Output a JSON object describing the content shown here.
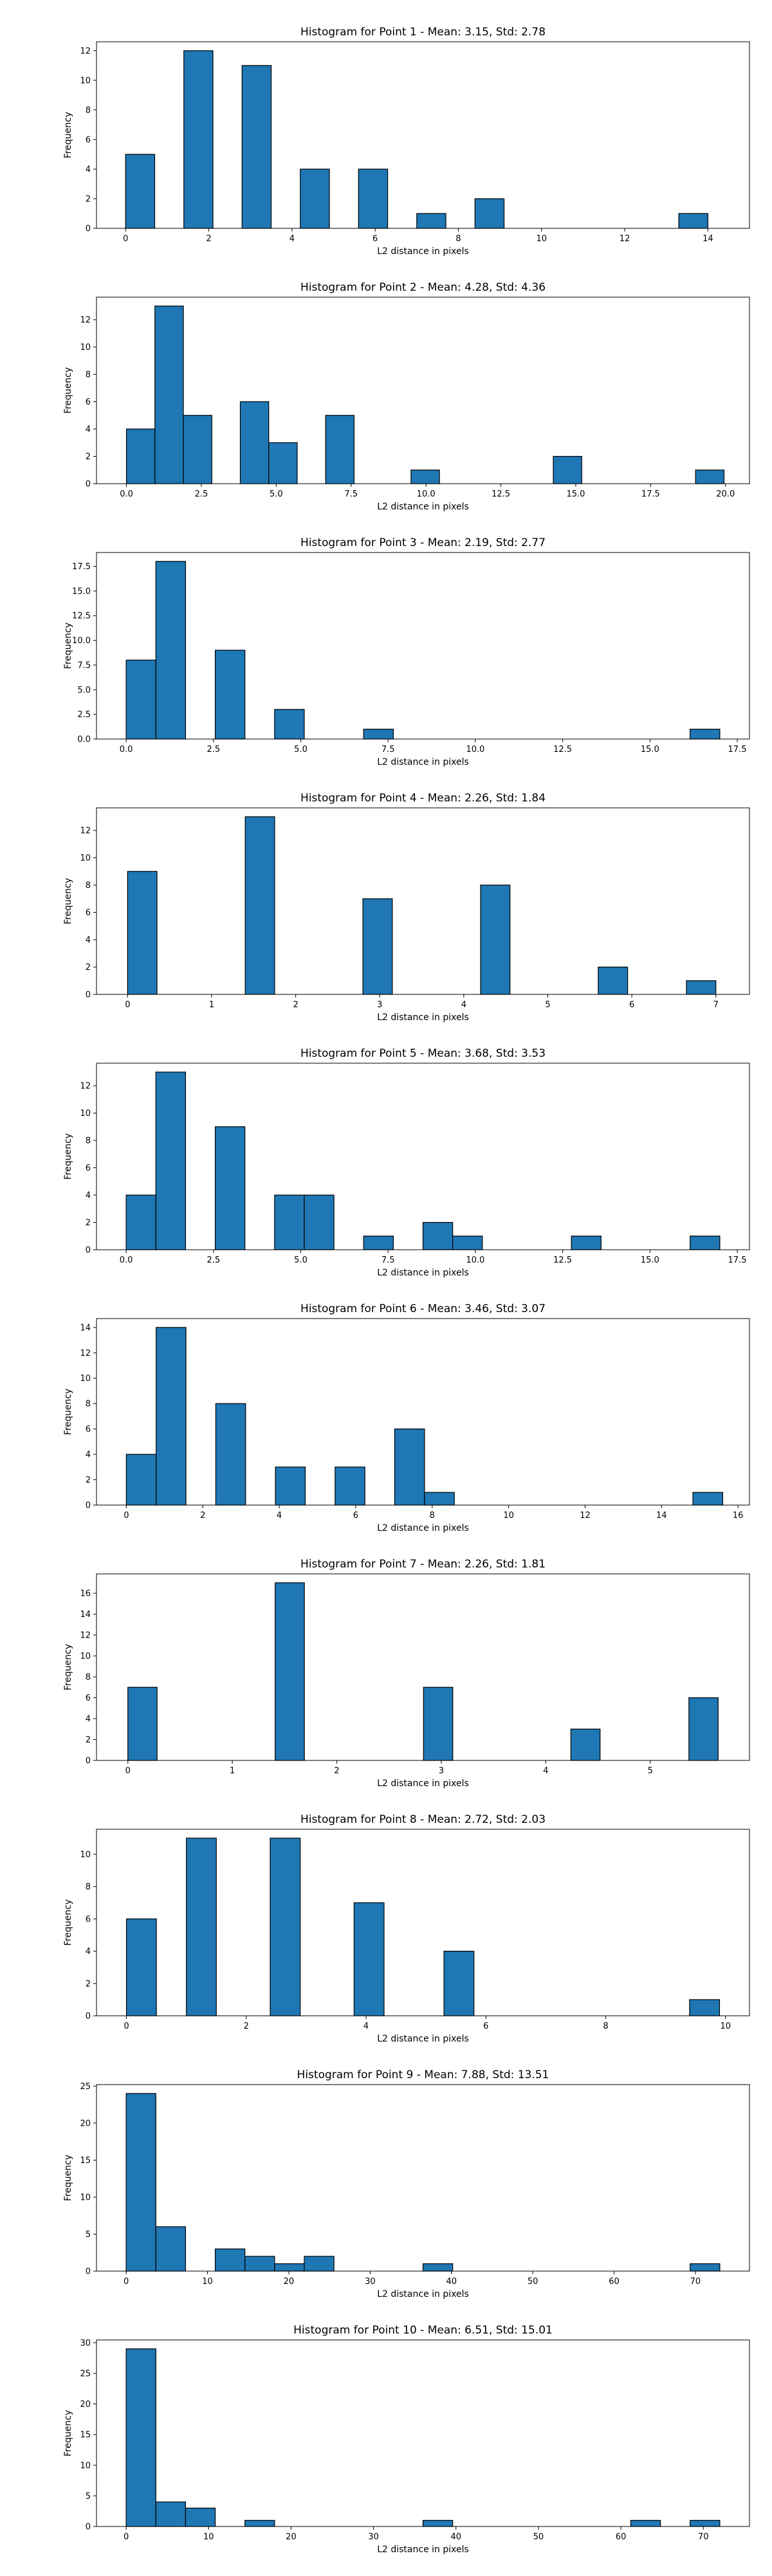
{
  "chart_data": [
    {
      "type": "bar",
      "title": "Histogram for Point 1 - Mean: 3.15, Std: 2.78",
      "xlabel": "L2 distance in pixels",
      "ylabel": "Frequency",
      "xlim": [
        -0.7,
        15.0
      ],
      "ylim": [
        0,
        12.6
      ],
      "xticks": [
        0,
        2,
        4,
        6,
        8,
        10,
        12,
        14
      ],
      "xtick_labels": [
        "0",
        "2",
        "4",
        "6",
        "8",
        "10",
        "12",
        "14"
      ],
      "yticks": [
        0,
        2,
        4,
        6,
        8,
        10,
        12
      ],
      "ytick_labels": [
        "0",
        "2",
        "4",
        "6",
        "8",
        "10",
        "12"
      ],
      "bins": [
        [
          0.0,
          0.7,
          5
        ],
        [
          1.4,
          2.1,
          12
        ],
        [
          2.8,
          3.5,
          11
        ],
        [
          4.2,
          4.9,
          4
        ],
        [
          5.6,
          6.3,
          4
        ],
        [
          7.0,
          7.7,
          1
        ],
        [
          8.4,
          9.1,
          2
        ],
        [
          13.3,
          14.0,
          1
        ]
      ],
      "bar_color": "#1f77b4",
      "edge_color": "#000000",
      "grid": false
    },
    {
      "type": "bar",
      "title": "Histogram for Point 2 - Mean: 4.28, Std: 4.36",
      "xlabel": "L2 distance in pixels",
      "ylabel": "Frequency",
      "xlim": [
        -1.0,
        20.8
      ],
      "ylim": [
        0,
        13.65
      ],
      "xticks": [
        0,
        2.5,
        5,
        7.5,
        10,
        12.5,
        15,
        17.5,
        20
      ],
      "xtick_labels": [
        "0.0",
        "2.5",
        "5.0",
        "7.5",
        "10.0",
        "12.5",
        "15.0",
        "17.5",
        "20.0"
      ],
      "yticks": [
        0,
        2,
        4,
        6,
        8,
        10,
        12
      ],
      "ytick_labels": [
        "0",
        "2",
        "4",
        "6",
        "8",
        "10",
        "12"
      ],
      "bins": [
        [
          0.0,
          0.95,
          4
        ],
        [
          0.95,
          1.9,
          13
        ],
        [
          1.9,
          2.85,
          5
        ],
        [
          3.8,
          4.75,
          6
        ],
        [
          4.75,
          5.7,
          3
        ],
        [
          6.65,
          7.6,
          5
        ],
        [
          9.5,
          10.45,
          1
        ],
        [
          14.25,
          15.2,
          2
        ],
        [
          19.0,
          19.95,
          1
        ]
      ],
      "bar_color": "#1f77b4",
      "edge_color": "#000000",
      "grid": false
    },
    {
      "type": "bar",
      "title": "Histogram for Point 3 - Mean: 2.19, Std: 2.77",
      "xlabel": "L2 distance in pixels",
      "ylabel": "Frequency",
      "xlim": [
        -0.85,
        17.85
      ],
      "ylim": [
        0,
        18.9
      ],
      "xticks": [
        0,
        2.5,
        5,
        7.5,
        10,
        12.5,
        15,
        17.5
      ],
      "xtick_labels": [
        "0.0",
        "2.5",
        "5.0",
        "7.5",
        "10.0",
        "12.5",
        "15.0",
        "17.5"
      ],
      "yticks": [
        0,
        2.5,
        5,
        7.5,
        10,
        12.5,
        15,
        17.5
      ],
      "ytick_labels": [
        "0.0",
        "2.5",
        "5.0",
        "7.5",
        "10.0",
        "12.5",
        "15.0",
        "17.5"
      ],
      "bins": [
        [
          0.0,
          0.85,
          8
        ],
        [
          0.85,
          1.7,
          18
        ],
        [
          2.55,
          3.4,
          9
        ],
        [
          4.25,
          5.1,
          3
        ],
        [
          6.8,
          7.65,
          1
        ],
        [
          16.15,
          17.0,
          1
        ]
      ],
      "bar_color": "#1f77b4",
      "edge_color": "#000000",
      "grid": false
    },
    {
      "type": "bar",
      "title": "Histogram for Point 4 - Mean: 2.26, Std: 1.84",
      "xlabel": "L2 distance in pixels",
      "ylabel": "Frequency",
      "xlim": [
        -0.37,
        7.4
      ],
      "ylim": [
        0,
        13.65
      ],
      "xticks": [
        0,
        1,
        2,
        3,
        4,
        5,
        6,
        7
      ],
      "xtick_labels": [
        "0",
        "1",
        "2",
        "3",
        "4",
        "5",
        "6",
        "7"
      ],
      "yticks": [
        0,
        2,
        4,
        6,
        8,
        10,
        12
      ],
      "ytick_labels": [
        "0",
        "2",
        "4",
        "6",
        "8",
        "10",
        "12"
      ],
      "bins": [
        [
          0.0,
          0.35,
          9
        ],
        [
          1.4,
          1.75,
          13
        ],
        [
          2.8,
          3.15,
          7
        ],
        [
          4.2,
          4.55,
          8
        ],
        [
          5.6,
          5.95,
          2
        ],
        [
          6.65,
          7.0,
          1
        ]
      ],
      "bar_color": "#1f77b4",
      "edge_color": "#000000",
      "grid": false
    },
    {
      "type": "bar",
      "title": "Histogram for Point 5 - Mean: 3.68, Std: 3.53",
      "xlabel": "L2 distance in pixels",
      "ylabel": "Frequency",
      "xlim": [
        -0.85,
        17.85
      ],
      "ylim": [
        0,
        13.65
      ],
      "xticks": [
        0,
        2.5,
        5,
        7.5,
        10,
        12.5,
        15,
        17.5
      ],
      "xtick_labels": [
        "0.0",
        "2.5",
        "5.0",
        "7.5",
        "10.0",
        "12.5",
        "15.0",
        "17.5"
      ],
      "yticks": [
        0,
        2,
        4,
        6,
        8,
        10,
        12
      ],
      "ytick_labels": [
        "0",
        "2",
        "4",
        "6",
        "8",
        "10",
        "12"
      ],
      "bins": [
        [
          0.0,
          0.85,
          4
        ],
        [
          0.85,
          1.7,
          13
        ],
        [
          2.55,
          3.4,
          9
        ],
        [
          4.25,
          5.1,
          4
        ],
        [
          5.1,
          5.95,
          4
        ],
        [
          6.8,
          7.65,
          1
        ],
        [
          8.5,
          9.35,
          2
        ],
        [
          9.35,
          10.2,
          1
        ],
        [
          12.75,
          13.6,
          1
        ],
        [
          16.15,
          17.0,
          1
        ]
      ],
      "bar_color": "#1f77b4",
      "edge_color": "#000000",
      "grid": false
    },
    {
      "type": "bar",
      "title": "Histogram for Point 6 - Mean: 3.46, Std: 3.07",
      "xlabel": "L2 distance in pixels",
      "ylabel": "Frequency",
      "xlim": [
        -0.78,
        16.3
      ],
      "ylim": [
        0,
        14.7
      ],
      "xticks": [
        0,
        2,
        4,
        6,
        8,
        10,
        12,
        14,
        16
      ],
      "xtick_labels": [
        "0",
        "2",
        "4",
        "6",
        "8",
        "10",
        "12",
        "14",
        "16"
      ],
      "yticks": [
        0,
        2,
        4,
        6,
        8,
        10,
        12,
        14
      ],
      "ytick_labels": [
        "0",
        "2",
        "4",
        "6",
        "8",
        "10",
        "12",
        "14"
      ],
      "bins": [
        [
          0.0,
          0.78,
          4
        ],
        [
          0.78,
          1.56,
          14
        ],
        [
          2.34,
          3.12,
          8
        ],
        [
          3.9,
          4.68,
          3
        ],
        [
          5.46,
          6.24,
          3
        ],
        [
          7.02,
          7.8,
          6
        ],
        [
          7.8,
          8.58,
          1
        ],
        [
          14.82,
          15.6,
          1
        ]
      ],
      "bar_color": "#1f77b4",
      "edge_color": "#000000",
      "grid": false
    },
    {
      "type": "bar",
      "title": "Histogram for Point 7 - Mean: 2.26, Std: 1.81",
      "xlabel": "L2 distance in pixels",
      "ylabel": "Frequency",
      "xlim": [
        -0.3,
        5.95
      ],
      "ylim": [
        0,
        17.85
      ],
      "xticks": [
        0,
        1,
        2,
        3,
        4,
        5
      ],
      "xtick_labels": [
        "0",
        "1",
        "2",
        "3",
        "4",
        "5"
      ],
      "yticks": [
        0,
        2,
        4,
        6,
        8,
        10,
        12,
        14,
        16
      ],
      "ytick_labels": [
        "0",
        "2",
        "4",
        "6",
        "8",
        "10",
        "12",
        "14",
        "16"
      ],
      "bins": [
        [
          0.0,
          0.28,
          7
        ],
        [
          1.41,
          1.69,
          17
        ],
        [
          2.83,
          3.11,
          7
        ],
        [
          4.24,
          4.52,
          3
        ],
        [
          5.37,
          5.65,
          6
        ]
      ],
      "bar_color": "#1f77b4",
      "edge_color": "#000000",
      "grid": false
    },
    {
      "type": "bar",
      "title": "Histogram for Point 8 - Mean: 2.72, Std: 2.03",
      "xlabel": "L2 distance in pixels",
      "ylabel": "Frequency",
      "xlim": [
        -0.5,
        10.4
      ],
      "ylim": [
        0,
        11.55
      ],
      "xticks": [
        0,
        2,
        4,
        6,
        8,
        10
      ],
      "xtick_labels": [
        "0",
        "2",
        "4",
        "6",
        "8",
        "10"
      ],
      "yticks": [
        0,
        2,
        4,
        6,
        8,
        10
      ],
      "ytick_labels": [
        "0",
        "2",
        "4",
        "6",
        "8",
        "10"
      ],
      "bins": [
        [
          0.0,
          0.5,
          6
        ],
        [
          1.0,
          1.5,
          11
        ],
        [
          2.4,
          2.9,
          11
        ],
        [
          3.8,
          4.3,
          7
        ],
        [
          5.3,
          5.8,
          4
        ],
        [
          9.4,
          9.9,
          1
        ]
      ],
      "bar_color": "#1f77b4",
      "edge_color": "#000000",
      "grid": false
    },
    {
      "type": "bar",
      "title": "Histogram for Point 9 - Mean: 7.88, Std: 13.51",
      "xlabel": "L2 distance in pixels",
      "ylabel": "Frequency",
      "xlim": [
        -3.65,
        76.65
      ],
      "ylim": [
        0,
        25.2
      ],
      "xticks": [
        0,
        10,
        20,
        30,
        40,
        50,
        60,
        70
      ],
      "xtick_labels": [
        "0",
        "10",
        "20",
        "30",
        "40",
        "50",
        "60",
        "70"
      ],
      "yticks": [
        0,
        5,
        10,
        15,
        20,
        25
      ],
      "ytick_labels": [
        "0",
        "5",
        "10",
        "15",
        "20",
        "25"
      ],
      "bins": [
        [
          0.0,
          3.65,
          24
        ],
        [
          3.65,
          7.3,
          6
        ],
        [
          10.95,
          14.6,
          3
        ],
        [
          14.6,
          18.25,
          2
        ],
        [
          18.25,
          21.9,
          1
        ],
        [
          21.9,
          25.55,
          2
        ],
        [
          36.5,
          40.15,
          1
        ],
        [
          69.35,
          73.0,
          1
        ]
      ],
      "bar_color": "#1f77b4",
      "edge_color": "#000000",
      "grid": false
    },
    {
      "type": "bar",
      "title": "Histogram for Point 10 - Mean: 6.51, Std: 15.01",
      "xlabel": "L2 distance in pixels",
      "ylabel": "Frequency",
      "xlim": [
        -3.6,
        75.6
      ],
      "ylim": [
        0,
        30.45
      ],
      "xticks": [
        0,
        10,
        20,
        30,
        40,
        50,
        60,
        70
      ],
      "xtick_labels": [
        "0",
        "10",
        "20",
        "30",
        "40",
        "50",
        "60",
        "70"
      ],
      "yticks": [
        0,
        5,
        10,
        15,
        20,
        25,
        30
      ],
      "ytick_labels": [
        "0",
        "5",
        "10",
        "15",
        "20",
        "25",
        "30"
      ],
      "bins": [
        [
          0.0,
          3.6,
          29
        ],
        [
          3.6,
          7.2,
          4
        ],
        [
          7.2,
          10.8,
          3
        ],
        [
          14.4,
          18.0,
          1
        ],
        [
          36.0,
          39.6,
          1
        ],
        [
          61.2,
          64.8,
          1
        ],
        [
          68.4,
          72.0,
          1
        ]
      ],
      "bar_color": "#1f77b4",
      "edge_color": "#000000",
      "grid": false
    }
  ]
}
